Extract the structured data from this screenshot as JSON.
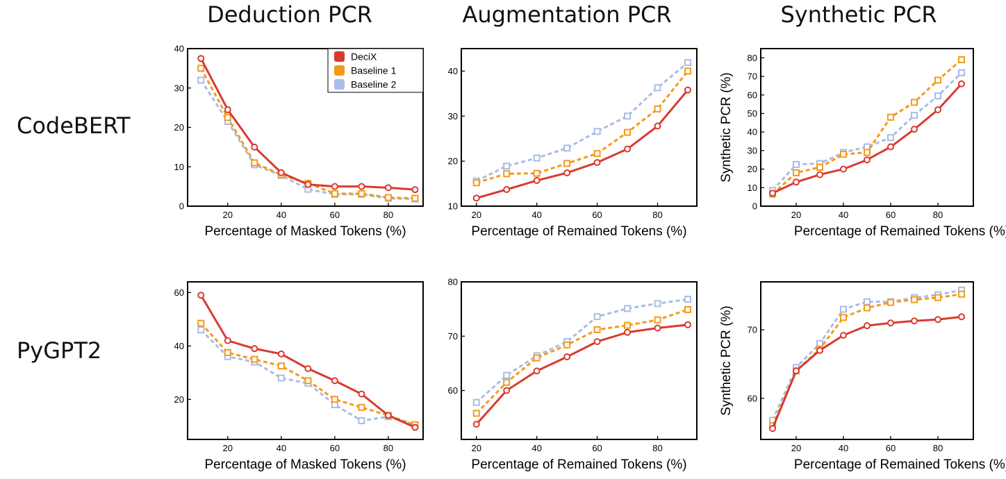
{
  "column_titles": [
    "Deduction PCR",
    "Augmentation PCR",
    "Synthetic PCR"
  ],
  "row_labels": [
    "CodeBERT",
    "PyGPT2"
  ],
  "legend": [
    {
      "name": "DeciX",
      "color": "#d93a2f"
    },
    {
      "name": "Baseline 1",
      "color": "#f39a1b"
    },
    {
      "name": "Baseline 2",
      "color": "#a9bce6"
    }
  ],
  "chart_data": [
    {
      "type": "line",
      "panel": "CodeBERT / Deduction PCR",
      "xlabel": "Percentage of Masked Tokens (%)",
      "ylabel": "",
      "xlim": [
        5,
        93
      ],
      "ylim": [
        0,
        40
      ],
      "xticks": [
        20,
        40,
        60,
        80
      ],
      "yticks": [
        0,
        10,
        20,
        30,
        40
      ],
      "grid": false,
      "legend": "top-right",
      "x": [
        10,
        20,
        30,
        40,
        50,
        60,
        70,
        80,
        90
      ],
      "series": [
        {
          "name": "DeciX",
          "values": [
            37.5,
            24.5,
            15,
            8.5,
            5.5,
            5,
            5,
            4.7,
            4.2
          ]
        },
        {
          "name": "Baseline 1",
          "values": [
            35,
            22.5,
            11,
            8,
            5.8,
            3.2,
            3.2,
            2.2,
            2
          ]
        },
        {
          "name": "Baseline 2",
          "values": [
            32,
            21.5,
            10.5,
            7.8,
            4.3,
            3,
            3,
            2,
            1.8
          ]
        }
      ]
    },
    {
      "type": "line",
      "panel": "CodeBERT / Augmentation PCR",
      "xlabel": "Percentage of Remained Tokens (%)",
      "ylabel": "",
      "xlim": [
        15,
        93
      ],
      "ylim": [
        10,
        45
      ],
      "xticks": [
        20,
        40,
        60,
        80
      ],
      "yticks": [
        10,
        20,
        30,
        40
      ],
      "grid": false,
      "x": [
        20,
        30,
        40,
        50,
        60,
        70,
        80,
        90
      ],
      "series": [
        {
          "name": "DeciX",
          "values": [
            11.8,
            13.7,
            15.7,
            17.4,
            19.7,
            22.7,
            27.8,
            35.8
          ]
        },
        {
          "name": "Baseline 1",
          "values": [
            15.2,
            17.2,
            17.3,
            19.5,
            21.7,
            26.4,
            31.6,
            40
          ]
        },
        {
          "name": "Baseline 2",
          "values": [
            15.6,
            18.9,
            20.7,
            22.9,
            26.6,
            30,
            36.3,
            41.9
          ]
        }
      ]
    },
    {
      "type": "line",
      "panel": "CodeBERT / Synthetic PCR",
      "xlabel": "Percentage of Remained Tokens (%)",
      "ylabel": "Synthetic PCR (%)",
      "xlim": [
        5,
        95
      ],
      "ylim": [
        0,
        85
      ],
      "xticks": [
        20,
        40,
        60,
        80
      ],
      "yticks": [
        0,
        10,
        20,
        30,
        40,
        50,
        60,
        70,
        80
      ],
      "grid": false,
      "x": [
        10,
        20,
        30,
        40,
        50,
        60,
        70,
        80,
        90
      ],
      "series": [
        {
          "name": "DeciX",
          "values": [
            7,
            13,
            17,
            20,
            25,
            32,
            41.5,
            52,
            66
          ]
        },
        {
          "name": "Baseline 1",
          "values": [
            6.5,
            18,
            21,
            28,
            29,
            48,
            56,
            68,
            79
          ]
        },
        {
          "name": "Baseline 2",
          "values": [
            8.5,
            22.5,
            23,
            29,
            32,
            37,
            49,
            59.5,
            72
          ]
        }
      ]
    },
    {
      "type": "line",
      "panel": "PyGPT2 / Deduction PCR",
      "xlabel": "Percentage of Masked Tokens (%)",
      "ylabel": "",
      "xlim": [
        5,
        93
      ],
      "ylim": [
        5,
        64
      ],
      "xticks": [
        20,
        40,
        60,
        80
      ],
      "yticks": [
        20,
        40,
        60
      ],
      "grid": false,
      "x": [
        10,
        20,
        30,
        40,
        50,
        60,
        70,
        80,
        90
      ],
      "series": [
        {
          "name": "DeciX",
          "values": [
            59,
            42,
            39,
            37,
            31.5,
            27,
            22,
            14,
            9.5
          ]
        },
        {
          "name": "Baseline 1",
          "values": [
            48.5,
            37.5,
            35,
            32.5,
            27,
            20,
            17,
            14,
            10.5
          ]
        },
        {
          "name": "Baseline 2",
          "values": [
            46,
            36,
            34,
            28,
            26,
            18,
            12,
            13.5,
            10.5
          ]
        }
      ]
    },
    {
      "type": "line",
      "panel": "PyGPT2 / Augmentation PCR",
      "xlabel": "Percentage of Remained Tokens (%)",
      "ylabel": "",
      "xlim": [
        15,
        93
      ],
      "ylim": [
        51,
        80
      ],
      "xticks": [
        20,
        40,
        60,
        80
      ],
      "yticks": [
        60,
        70,
        80
      ],
      "grid": false,
      "x": [
        20,
        30,
        40,
        50,
        60,
        70,
        80,
        90
      ],
      "series": [
        {
          "name": "DeciX",
          "values": [
            53.8,
            60,
            63.6,
            66.2,
            69,
            70.7,
            71.5,
            72.1
          ]
        },
        {
          "name": "Baseline 1",
          "values": [
            55.8,
            61.5,
            66,
            68.4,
            71.2,
            72,
            73,
            74.9
          ]
        },
        {
          "name": "Baseline 2",
          "values": [
            57.8,
            62.8,
            66.4,
            69,
            73.6,
            75.1,
            76,
            76.8
          ]
        }
      ]
    },
    {
      "type": "line",
      "panel": "PyGPT2 / Synthetic PCR",
      "xlabel": "Percentage of Remained Tokens (%)",
      "ylabel": "Synthetic PCR (%)",
      "xlim": [
        5,
        95
      ],
      "ylim": [
        54,
        77
      ],
      "xticks": [
        20,
        40,
        60,
        80
      ],
      "yticks": [
        60,
        70
      ],
      "grid": false,
      "x": [
        10,
        20,
        30,
        40,
        50,
        60,
        70,
        80,
        90
      ],
      "series": [
        {
          "name": "DeciX",
          "values": [
            55.6,
            64,
            67,
            69.2,
            70.6,
            71,
            71.3,
            71.5,
            71.9
          ]
        },
        {
          "name": "Baseline 1",
          "values": [
            56,
            64,
            67.2,
            71.8,
            73.2,
            74,
            74.4,
            74.7,
            75.2
          ]
        },
        {
          "name": "Baseline 2",
          "values": [
            56.8,
            64.5,
            68,
            73,
            74.1,
            74.1,
            74.7,
            75.1,
            75.8
          ]
        }
      ]
    }
  ]
}
